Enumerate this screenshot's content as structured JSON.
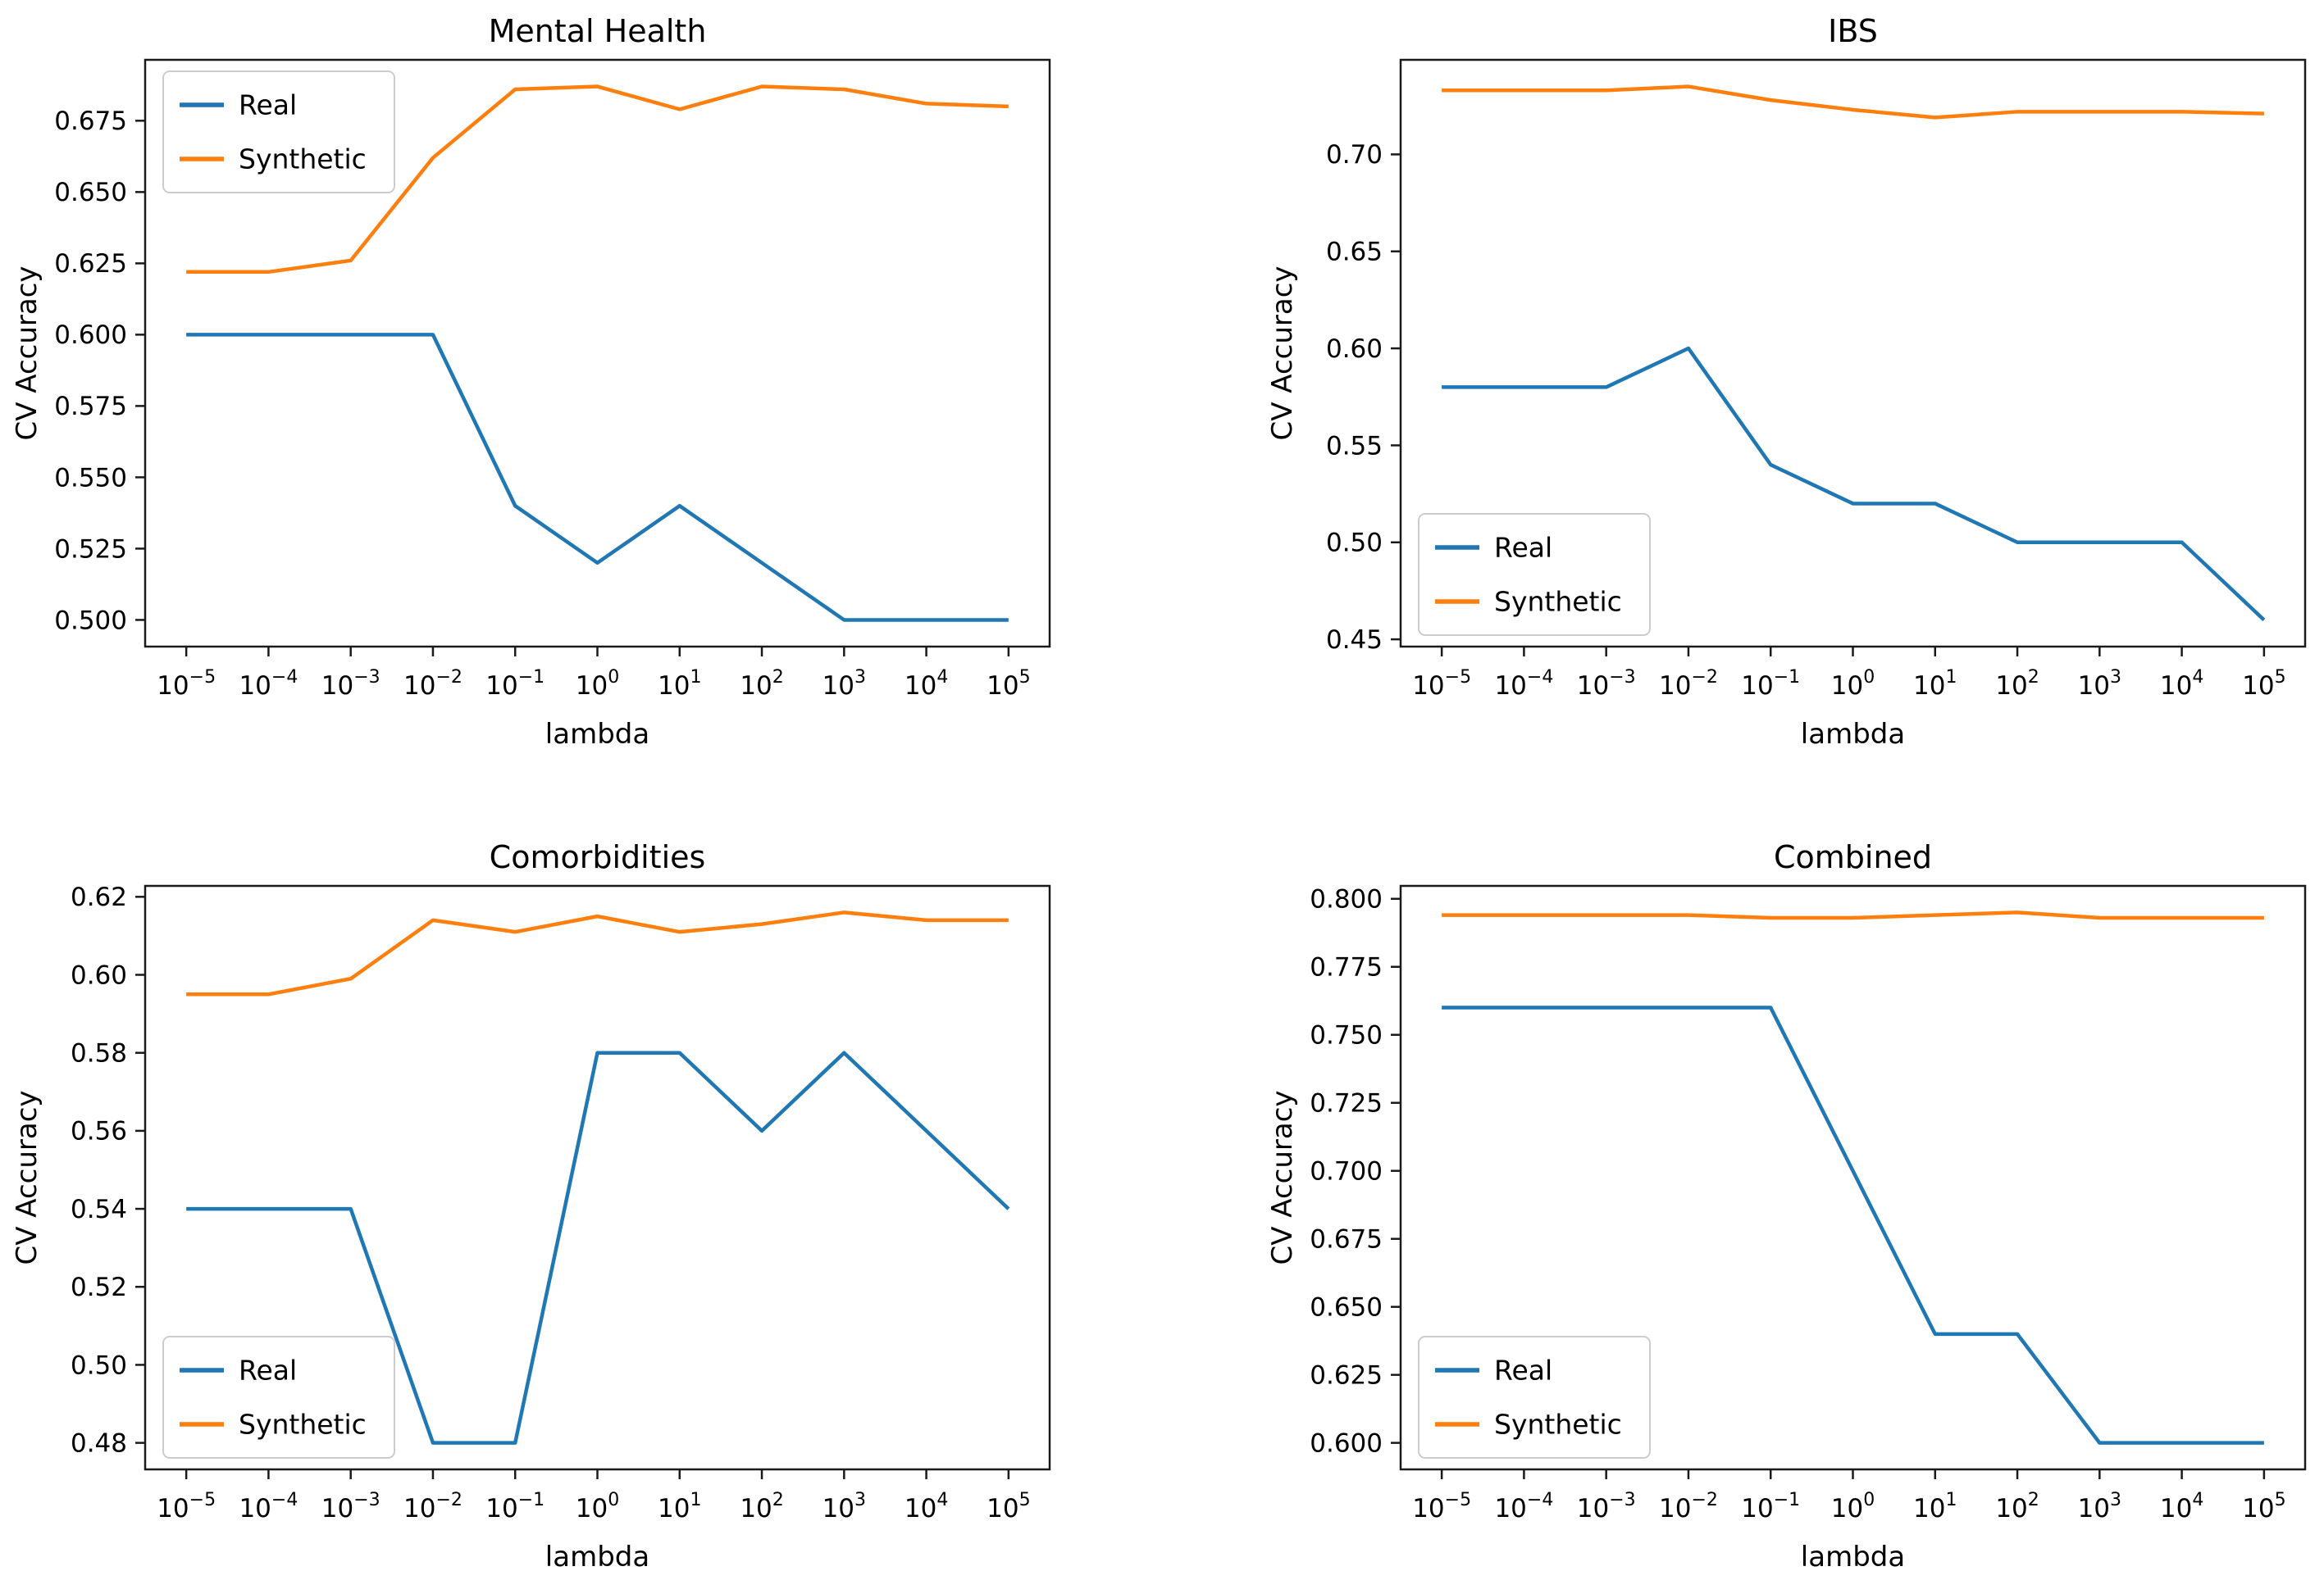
{
  "page": {
    "background": "#ffffff"
  },
  "colors": {
    "real": "#1f77b4",
    "synthetic": "#ff7f0e",
    "axis": "#1a1a1a",
    "tick_text": "#000000",
    "legend_border": "#cccccc",
    "legend_bg": "#ffffff"
  },
  "chart_data": [
    {
      "type": "line",
      "title": "Mental Health",
      "xlabel": "lambda",
      "ylabel": "CV Accuracy",
      "x_scale": "log",
      "x_exponents": [
        -5,
        -4,
        -3,
        -2,
        -1,
        0,
        1,
        2,
        3,
        4,
        5
      ],
      "x_tick_labels": [
        "10⁻⁵",
        "10⁻⁴",
        "10⁻³",
        "10⁻²",
        "10⁻¹",
        "10⁰",
        "10¹",
        "10²",
        "10³",
        "10⁴",
        "10⁵"
      ],
      "ylim": [
        0.49065,
        0.69635
      ],
      "y_tick_values": [
        0.5,
        0.525,
        0.55,
        0.575,
        0.6,
        0.625,
        0.65,
        0.675
      ],
      "y_tick_labels": [
        "0.500",
        "0.525",
        "0.550",
        "0.575",
        "0.600",
        "0.625",
        "0.650",
        "0.675"
      ],
      "grid": false,
      "legend": {
        "entries": [
          "Real",
          "Synthetic"
        ],
        "position": "upper-left"
      },
      "series": [
        {
          "name": "Real",
          "color_key": "real",
          "values": [
            0.6,
            0.6,
            0.6,
            0.6,
            0.54,
            0.52,
            0.54,
            0.52,
            0.5,
            0.5,
            0.5
          ]
        },
        {
          "name": "Synthetic",
          "color_key": "synthetic",
          "values": [
            0.622,
            0.622,
            0.626,
            0.662,
            0.686,
            0.687,
            0.679,
            0.687,
            0.686,
            0.681,
            0.68
          ]
        }
      ]
    },
    {
      "type": "line",
      "title": "IBS",
      "xlabel": "lambda",
      "ylabel": "CV Accuracy",
      "x_scale": "log",
      "x_exponents": [
        -5,
        -4,
        -3,
        -2,
        -1,
        0,
        1,
        2,
        3,
        4,
        5
      ],
      "x_tick_labels": [
        "10⁻⁵",
        "10⁻⁴",
        "10⁻³",
        "10⁻²",
        "10⁻¹",
        "10⁰",
        "10¹",
        "10²",
        "10³",
        "10⁴",
        "10⁵"
      ],
      "ylim": [
        0.44625,
        0.74875
      ],
      "y_tick_values": [
        0.45,
        0.5,
        0.55,
        0.6,
        0.65,
        0.7
      ],
      "y_tick_labels": [
        "0.45",
        "0.50",
        "0.55",
        "0.60",
        "0.65",
        "0.70"
      ],
      "grid": false,
      "legend": {
        "entries": [
          "Real",
          "Synthetic"
        ],
        "position": "lower-left"
      },
      "series": [
        {
          "name": "Real",
          "color_key": "real",
          "values": [
            0.58,
            0.58,
            0.58,
            0.6,
            0.54,
            0.52,
            0.52,
            0.5,
            0.5,
            0.5,
            0.46
          ]
        },
        {
          "name": "Synthetic",
          "color_key": "synthetic",
          "values": [
            0.733,
            0.733,
            0.733,
            0.735,
            0.728,
            0.723,
            0.719,
            0.722,
            0.722,
            0.722,
            0.721
          ]
        }
      ]
    },
    {
      "type": "line",
      "title": "Comorbidities",
      "xlabel": "lambda",
      "ylabel": "CV Accuracy",
      "x_scale": "log",
      "x_exponents": [
        -5,
        -4,
        -3,
        -2,
        -1,
        0,
        1,
        2,
        3,
        4,
        5
      ],
      "x_tick_labels": [
        "10⁻⁵",
        "10⁻⁴",
        "10⁻³",
        "10⁻²",
        "10⁻¹",
        "10⁰",
        "10¹",
        "10²",
        "10³",
        "10⁴",
        "10⁵"
      ],
      "ylim": [
        0.4732,
        0.6228
      ],
      "y_tick_values": [
        0.48,
        0.5,
        0.52,
        0.54,
        0.56,
        0.58,
        0.6,
        0.62
      ],
      "y_tick_labels": [
        "0.48",
        "0.50",
        "0.52",
        "0.54",
        "0.56",
        "0.58",
        "0.60",
        "0.62"
      ],
      "grid": false,
      "legend": {
        "entries": [
          "Real",
          "Synthetic"
        ],
        "position": "lower-left"
      },
      "series": [
        {
          "name": "Real",
          "color_key": "real",
          "values": [
            0.54,
            0.54,
            0.54,
            0.48,
            0.48,
            0.58,
            0.58,
            0.56,
            0.58,
            0.56,
            0.54
          ]
        },
        {
          "name": "Synthetic",
          "color_key": "synthetic",
          "values": [
            0.595,
            0.595,
            0.599,
            0.614,
            0.611,
            0.615,
            0.611,
            0.613,
            0.616,
            0.614,
            0.614
          ]
        }
      ]
    },
    {
      "type": "line",
      "title": "Combined",
      "xlabel": "lambda",
      "ylabel": "CV Accuracy",
      "x_scale": "log",
      "x_exponents": [
        -5,
        -4,
        -3,
        -2,
        -1,
        0,
        1,
        2,
        3,
        4,
        5
      ],
      "x_tick_labels": [
        "10⁻⁵",
        "10⁻⁴",
        "10⁻³",
        "10⁻²",
        "10⁻¹",
        "10⁰",
        "10¹",
        "10²",
        "10³",
        "10⁴",
        "10⁵"
      ],
      "ylim": [
        0.59025,
        0.80475
      ],
      "y_tick_values": [
        0.6,
        0.625,
        0.65,
        0.675,
        0.7,
        0.725,
        0.75,
        0.775,
        0.8
      ],
      "y_tick_labels": [
        "0.600",
        "0.625",
        "0.650",
        "0.675",
        "0.700",
        "0.725",
        "0.750",
        "0.775",
        "0.800"
      ],
      "grid": false,
      "legend": {
        "entries": [
          "Real",
          "Synthetic"
        ],
        "position": "lower-left"
      },
      "series": [
        {
          "name": "Real",
          "color_key": "real",
          "values": [
            0.76,
            0.76,
            0.76,
            0.76,
            0.76,
            0.7,
            0.64,
            0.64,
            0.6,
            0.6,
            0.6
          ]
        },
        {
          "name": "Synthetic",
          "color_key": "synthetic",
          "values": [
            0.794,
            0.794,
            0.794,
            0.794,
            0.793,
            0.793,
            0.794,
            0.795,
            0.793,
            0.793,
            0.793
          ]
        }
      ]
    }
  ]
}
